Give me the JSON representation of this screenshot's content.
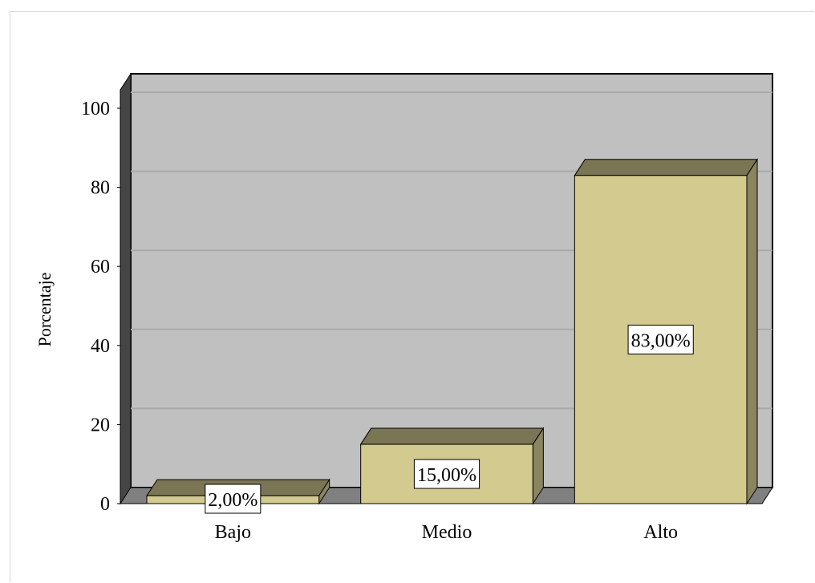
{
  "chart_data": {
    "type": "bar",
    "three_d": true,
    "categories": [
      "Bajo",
      "Medio",
      "Alto"
    ],
    "values": [
      2,
      15,
      83
    ],
    "value_labels": [
      "2,00%",
      "15,00%",
      "83,00%"
    ],
    "xlabel": "",
    "ylabel": "Porcentaje",
    "ylim": [
      0,
      100
    ],
    "yticks": [
      "0",
      "20",
      "40",
      "60",
      "80",
      "100"
    ],
    "grid": true,
    "legend": "none"
  },
  "colors": {
    "bar_face": "#d3ca8f",
    "bar_top": "#7a7554",
    "bar_side": "#8a8560",
    "plot_back": "#c0c0c0",
    "plot_floor": "#808080",
    "plot_wall": "#454545",
    "grid": "#a9a9a9"
  }
}
